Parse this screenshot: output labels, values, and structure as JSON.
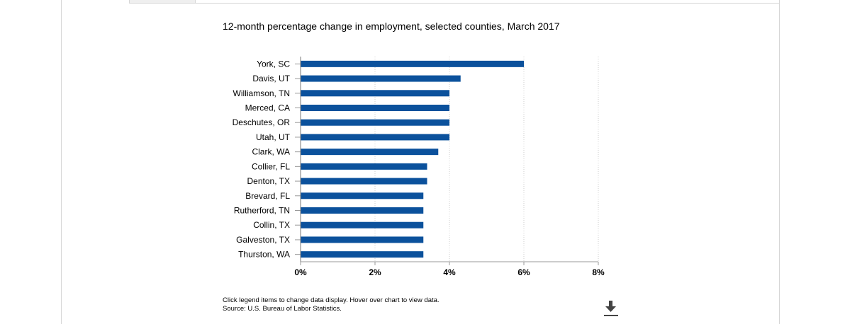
{
  "chart_data": {
    "type": "bar",
    "orientation": "horizontal",
    "title": "12-month percentage change in employment, selected counties, March 2017",
    "xlabel": "",
    "ylabel": "",
    "categories": [
      "York, SC",
      "Davis, UT",
      "Williamson, TN",
      "Merced, CA",
      "Deschutes, OR",
      "Utah, UT",
      "Clark, WA",
      "Collier, FL",
      "Denton, TX",
      "Brevard, FL",
      "Rutherford, TN",
      "Collin, TX",
      "Galveston, TX",
      "Thurston, WA"
    ],
    "values": [
      6.0,
      4.3,
      4.0,
      4.0,
      4.0,
      4.0,
      3.7,
      3.4,
      3.4,
      3.3,
      3.3,
      3.3,
      3.3,
      3.3
    ],
    "xlim": [
      0,
      8
    ],
    "ticks": [
      "0%",
      "2%",
      "4%",
      "6%",
      "8%"
    ],
    "grid": true,
    "bar_color": "#0b519c",
    "legend": "none"
  },
  "notes": {
    "line1": "Click legend items to change data display. Hover over chart to view data.",
    "line2": "Source: U.S. Bureau of Labor Statistics."
  },
  "icons": {
    "download": "download-icon"
  }
}
